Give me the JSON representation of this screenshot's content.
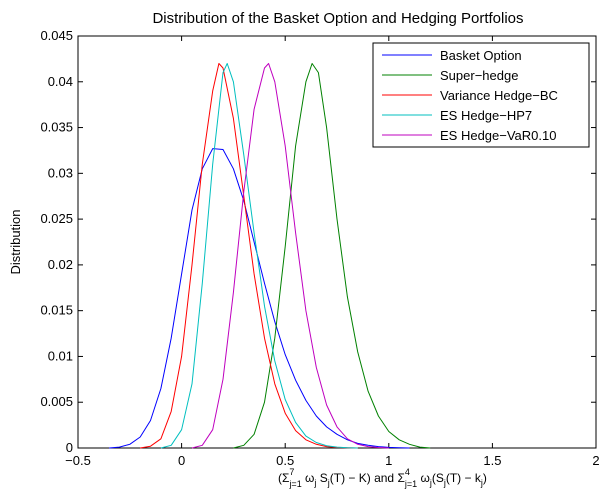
{
  "chart_data": {
    "type": "line",
    "title": "Distribution of the Basket Option and Hedging Portfolios",
    "ylabel": "Distribution",
    "xlabel_parts": [
      "(Σ",
      "7",
      "j=1",
      " ω",
      "j",
      " S",
      "j",
      "(T) − K)   and   Σ",
      "4",
      "j=1",
      " ω",
      "j",
      "(S",
      "j",
      "(T) − k",
      "j",
      ")"
    ],
    "xlim": [
      -0.5,
      2
    ],
    "ylim": [
      0,
      0.045
    ],
    "xticks": [
      -0.5,
      0,
      0.5,
      1,
      1.5,
      2
    ],
    "xtick_labels": [
      "−0.5",
      "0",
      "0.5",
      "1",
      "1.5",
      "2"
    ],
    "yticks": [
      0,
      0.005,
      0.01,
      0.015,
      0.02,
      0.025,
      0.03,
      0.035,
      0.04,
      0.045
    ],
    "ytick_labels": [
      "0",
      "0.005",
      "0.01",
      "0.015",
      "0.02",
      "0.025",
      "0.03",
      "0.035",
      "0.04",
      "0.045"
    ],
    "legend_position": "top-right",
    "grid": false,
    "series": [
      {
        "name": "Basket Option",
        "color": "#0000ff",
        "x": [
          -0.35,
          -0.3,
          -0.25,
          -0.2,
          -0.15,
          -0.1,
          -0.05,
          0,
          0.05,
          0.1,
          0.15,
          0.2,
          0.25,
          0.3,
          0.35,
          0.4,
          0.45,
          0.5,
          0.55,
          0.6,
          0.65,
          0.7,
          0.75,
          0.8,
          0.85,
          0.9,
          0.95,
          1.0,
          1.05,
          1.1
        ],
        "y": [
          0,
          0.0001,
          0.0004,
          0.0012,
          0.003,
          0.0065,
          0.012,
          0.019,
          0.026,
          0.0305,
          0.0327,
          0.0326,
          0.0305,
          0.027,
          0.0225,
          0.018,
          0.0138,
          0.0102,
          0.0074,
          0.0052,
          0.0035,
          0.0023,
          0.0015,
          0.0009,
          0.0005,
          0.0003,
          0.00015,
          7e-05,
          3e-05,
          0
        ]
      },
      {
        "name": "Super−hedge",
        "color": "#008000",
        "x": [
          0.25,
          0.3,
          0.35,
          0.4,
          0.45,
          0.5,
          0.55,
          0.6,
          0.63,
          0.66,
          0.7,
          0.75,
          0.8,
          0.85,
          0.9,
          0.95,
          1.0,
          1.05,
          1.1,
          1.15,
          1.2
        ],
        "y": [
          0,
          0.0003,
          0.0015,
          0.005,
          0.012,
          0.022,
          0.033,
          0.04,
          0.042,
          0.041,
          0.035,
          0.025,
          0.0165,
          0.0105,
          0.0062,
          0.0035,
          0.0018,
          0.0009,
          0.0004,
          0.0001,
          0
        ]
      },
      {
        "name": "Variance Hedge−BC",
        "color": "#ff0000",
        "x": [
          -0.2,
          -0.15,
          -0.1,
          -0.05,
          0,
          0.05,
          0.1,
          0.15,
          0.18,
          0.2,
          0.25,
          0.3,
          0.35,
          0.4,
          0.45,
          0.5,
          0.55,
          0.6,
          0.65,
          0.7,
          0.75,
          0.8,
          0.85
        ],
        "y": [
          0,
          0.0002,
          0.001,
          0.004,
          0.01,
          0.02,
          0.031,
          0.039,
          0.042,
          0.0415,
          0.036,
          0.0275,
          0.019,
          0.012,
          0.007,
          0.0038,
          0.0019,
          0.0009,
          0.0004,
          0.00015,
          5e-05,
          2e-05,
          0
        ]
      },
      {
        "name": "ES Hedge−HP7",
        "color": "#00bfbf",
        "x": [
          -0.1,
          -0.05,
          0,
          0.05,
          0.1,
          0.15,
          0.2,
          0.22,
          0.25,
          0.3,
          0.35,
          0.4,
          0.45,
          0.5,
          0.55,
          0.6,
          0.65,
          0.7,
          0.75,
          0.8,
          0.85
        ],
        "y": [
          0,
          0.0003,
          0.002,
          0.007,
          0.018,
          0.031,
          0.041,
          0.042,
          0.04,
          0.032,
          0.0235,
          0.0155,
          0.0095,
          0.0053,
          0.0028,
          0.0013,
          0.0006,
          0.00025,
          0.0001,
          3e-05,
          0
        ]
      },
      {
        "name": "ES Hedge−VaR0.10",
        "color": "#bf00bf",
        "x": [
          0.05,
          0.1,
          0.15,
          0.2,
          0.25,
          0.3,
          0.35,
          0.4,
          0.42,
          0.45,
          0.5,
          0.55,
          0.6,
          0.65,
          0.7,
          0.75,
          0.8,
          0.85,
          0.9,
          0.95,
          1.0
        ],
        "y": [
          0,
          0.0003,
          0.002,
          0.0075,
          0.017,
          0.028,
          0.037,
          0.0415,
          0.042,
          0.04,
          0.033,
          0.0235,
          0.015,
          0.0088,
          0.0047,
          0.0023,
          0.001,
          0.0004,
          0.00015,
          5e-05,
          0
        ]
      }
    ]
  }
}
